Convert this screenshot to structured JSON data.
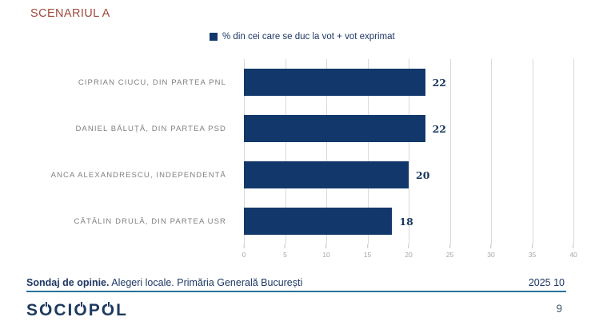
{
  "title": "SCENARIUL A",
  "legend": {
    "label": "% din cei care se duc la vot + vot exprimat",
    "marker_color": "#12386B"
  },
  "chart_data": {
    "type": "bar",
    "orientation": "horizontal",
    "series_name": "% din cei care se duc la vot + vot exprimat",
    "categories": [
      "CIPRIAN CIUCU, DIN PARTEA PNL",
      "DANIEL BĂLUȚĂ, DIN PARTEA PSD",
      "ANCA ALEXANDRESCU, INDEPENDENTĂ",
      "CĂTĂLIN DRULĂ, DIN PARTEA USR"
    ],
    "values": [
      22,
      22,
      20,
      18
    ],
    "value_labels": [
      "22",
      "22",
      "20",
      "18"
    ],
    "xlim": [
      0,
      40
    ],
    "tick_labels": [
      "0",
      "5",
      "10",
      "15",
      "20",
      "25",
      "30",
      "35",
      "40"
    ],
    "bar_color": "#12386B",
    "grid": "vertical-gridlines-on",
    "legend_position": "top-center"
  },
  "footer": {
    "left_bold": "Sondaj de opinie.",
    "left_rest": " Alegeri locale. Primăria Generală București",
    "right": "2025 10"
  },
  "branding": {
    "logo_letters": [
      "S",
      "O",
      "C",
      "I",
      "O",
      "P",
      "O",
      "L"
    ],
    "page_number": "9"
  }
}
